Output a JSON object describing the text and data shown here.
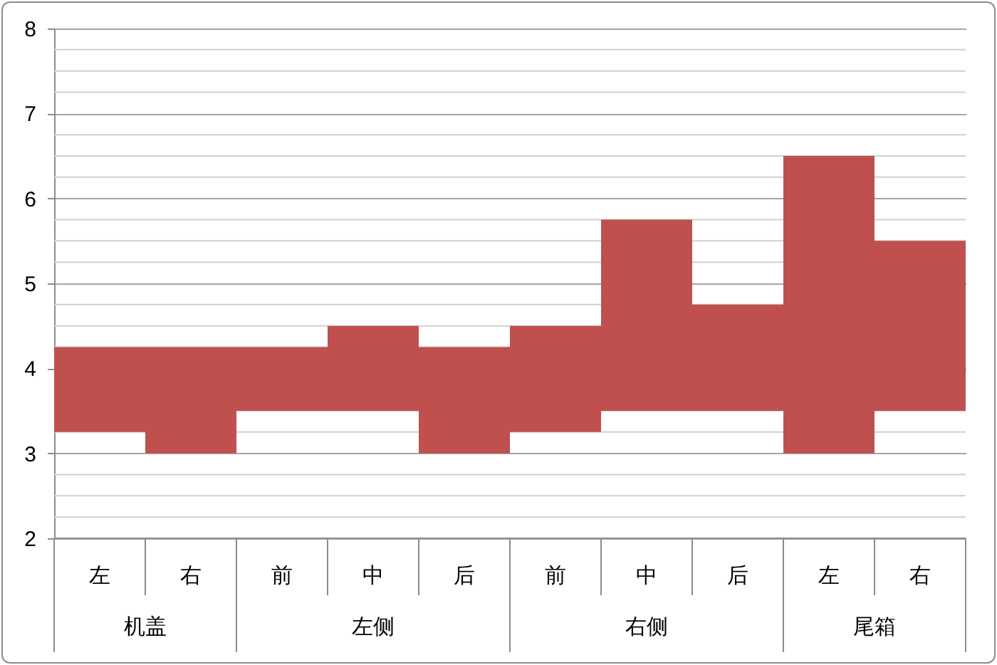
{
  "chart_data": {
    "type": "bar",
    "categories": [
      "左",
      "右",
      "前",
      "中",
      "后",
      "前",
      "中",
      "后",
      "左",
      "右"
    ],
    "base": [
      3.25,
      3,
      3.5,
      3.5,
      3,
      3.25,
      3.5,
      3.5,
      3,
      3.5
    ],
    "values": [
      1,
      1.25,
      0.75,
      1,
      1.25,
      1.25,
      2.25,
      1.25,
      3.5,
      2
    ],
    "color": "#c0504d",
    "annotations": [
      "机盖",
      "左侧",
      "右侧",
      "尾箱"
    ],
    "ylim": [
      2,
      8
    ],
    "yticks": [
      2,
      3,
      4,
      5,
      6,
      7,
      8
    ],
    "grid": true
  }
}
